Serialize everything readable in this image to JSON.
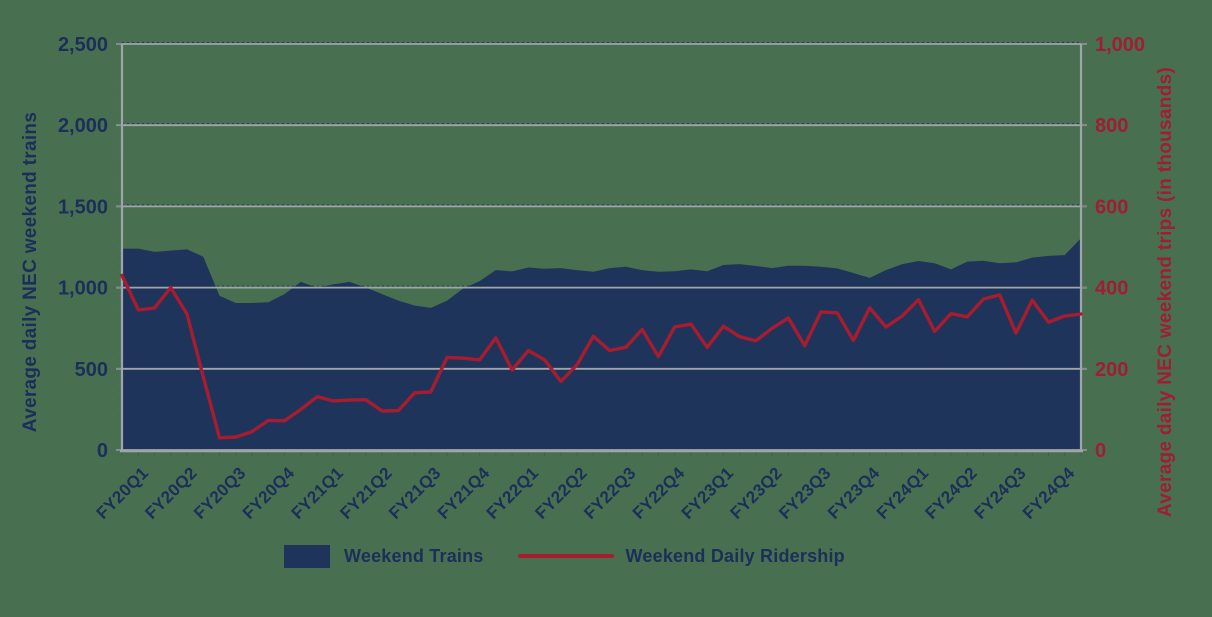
{
  "colors": {
    "background": "#487050",
    "navy_fill": "#1E345A",
    "red_line": "#A81C30",
    "navy_text": "#1C2E5A",
    "red_text": "#A01D33",
    "grid_gray": "#9FA5A9",
    "grid_dot_navy": "#24365C"
  },
  "chart_data": {
    "type": "area+line combo (dual axis)",
    "title": "",
    "categories": [
      "FY20Q1",
      "FY20Q2",
      "FY20Q3",
      "FY20Q4",
      "FY21Q1",
      "FY21Q2",
      "FY21Q3",
      "FY21Q4",
      "FY22Q1",
      "FY22Q2",
      "FY22Q3",
      "FY22Q4",
      "FY23Q1",
      "FY23Q2",
      "FY23Q3",
      "FY23Q4",
      "FY24Q1",
      "FY24Q2",
      "FY24Q3",
      "FY24Q4"
    ],
    "points_per_category": 3,
    "grid": {
      "on": true,
      "values_left": [
        0,
        500,
        1000,
        1500,
        2000,
        2500
      ]
    },
    "left_axis": {
      "label": "Average daily NEC weekend trains",
      "min": 0,
      "max": 2500,
      "step": 500,
      "ticks": [
        "0",
        "500",
        "1,000",
        "1,500",
        "2,000",
        "2,500"
      ]
    },
    "right_axis": {
      "label": "Average daily NEC weekend trips (in thousands)",
      "min": 0,
      "max": 1000,
      "step": 200,
      "ticks": [
        "0",
        "200",
        "400",
        "600",
        "800",
        "1,000"
      ]
    },
    "series": [
      {
        "name": "Weekend Trains",
        "type": "area",
        "axis": "left",
        "color": "#1E345A",
        "values": [
          1240,
          1240,
          1220,
          1228,
          1235,
          1190,
          950,
          905,
          905,
          910,
          960,
          1035,
          1000,
          1020,
          1035,
          1000,
          960,
          920,
          890,
          875,
          920,
          995,
          1040,
          1108,
          1100,
          1124,
          1116,
          1120,
          1108,
          1097,
          1120,
          1129,
          1108,
          1097,
          1101,
          1112,
          1101,
          1139,
          1145,
          1133,
          1120,
          1135,
          1135,
          1128,
          1118,
          1090,
          1060,
          1108,
          1145,
          1164,
          1150,
          1112,
          1160,
          1165,
          1150,
          1155,
          1185,
          1195,
          1200,
          1305
        ]
      },
      {
        "name": "Weekend Daily Ridership",
        "type": "line",
        "axis": "right",
        "color": "#A81C30",
        "values": [
          430,
          345,
          350,
          400,
          335,
          180,
          30,
          32,
          45,
          73,
          72,
          100,
          131,
          121,
          123,
          124,
          96,
          97,
          141,
          143,
          228,
          226,
          222,
          276,
          197,
          245,
          222,
          169,
          210,
          280,
          245,
          253,
          297,
          230,
          303,
          310,
          253,
          305,
          279,
          269,
          300,
          325,
          257,
          340,
          338,
          270,
          350,
          303,
          330,
          370,
          292,
          336,
          328,
          372,
          382,
          288,
          369,
          315,
          330,
          335
        ]
      }
    ],
    "legend": {
      "position": "bottom",
      "items": [
        {
          "label": "Weekend Trains",
          "swatch": "area"
        },
        {
          "label": "Weekend Daily Ridership",
          "swatch": "line"
        }
      ]
    }
  }
}
